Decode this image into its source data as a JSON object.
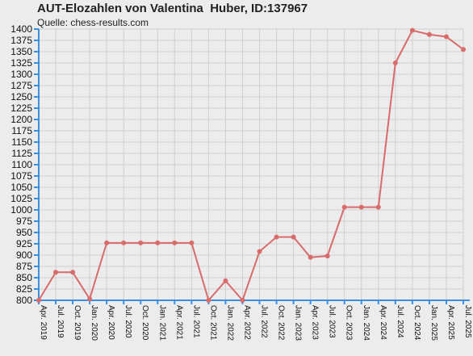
{
  "header": {
    "title": "AUT-Elozahlen von Valentina  Huber, ID:137967",
    "source": "Quelle: chess-results.com"
  },
  "chart_data": {
    "type": "line",
    "title": "AUT-Elozahlen von Valentina  Huber, ID:137967",
    "subtitle": "Quelle: chess-results.com",
    "xlabel": "",
    "ylabel": "",
    "ylim": [
      800,
      1400
    ],
    "ytick_step": 25,
    "grid": true,
    "categories": [
      "Apr. 2019",
      "Jul. 2019",
      "Oct. 2019",
      "Jan. 2020",
      "Apr. 2020",
      "Jul. 2020",
      "Oct. 2020",
      "Jan. 2021",
      "Apr. 2021",
      "Jul. 2021",
      "Oct. 2021",
      "Jan. 2022",
      "Apr. 2022",
      "Jul. 2022",
      "Oct. 2022",
      "Jan. 2023",
      "Apr. 2023",
      "Jul. 2023",
      "Oct. 2023",
      "Jan. 2024",
      "Apr. 2024",
      "Jul. 2024",
      "Oct. 2024",
      "Jan. 2025",
      "Apr. 2025",
      "Jul. 2025"
    ],
    "series": [
      {
        "values": [
          800,
          862,
          862,
          803,
          927,
          927,
          927,
          927,
          927,
          927,
          800,
          843,
          800,
          908,
          940,
          940,
          895,
          898,
          1006,
          1006,
          1006,
          1325,
          1397,
          1388,
          1383,
          1355
        ]
      }
    ],
    "colors": {
      "line": "#d96b6b",
      "axis": "#3a8fe0",
      "grid": "#cfcfcf",
      "background": "#ececec"
    }
  }
}
